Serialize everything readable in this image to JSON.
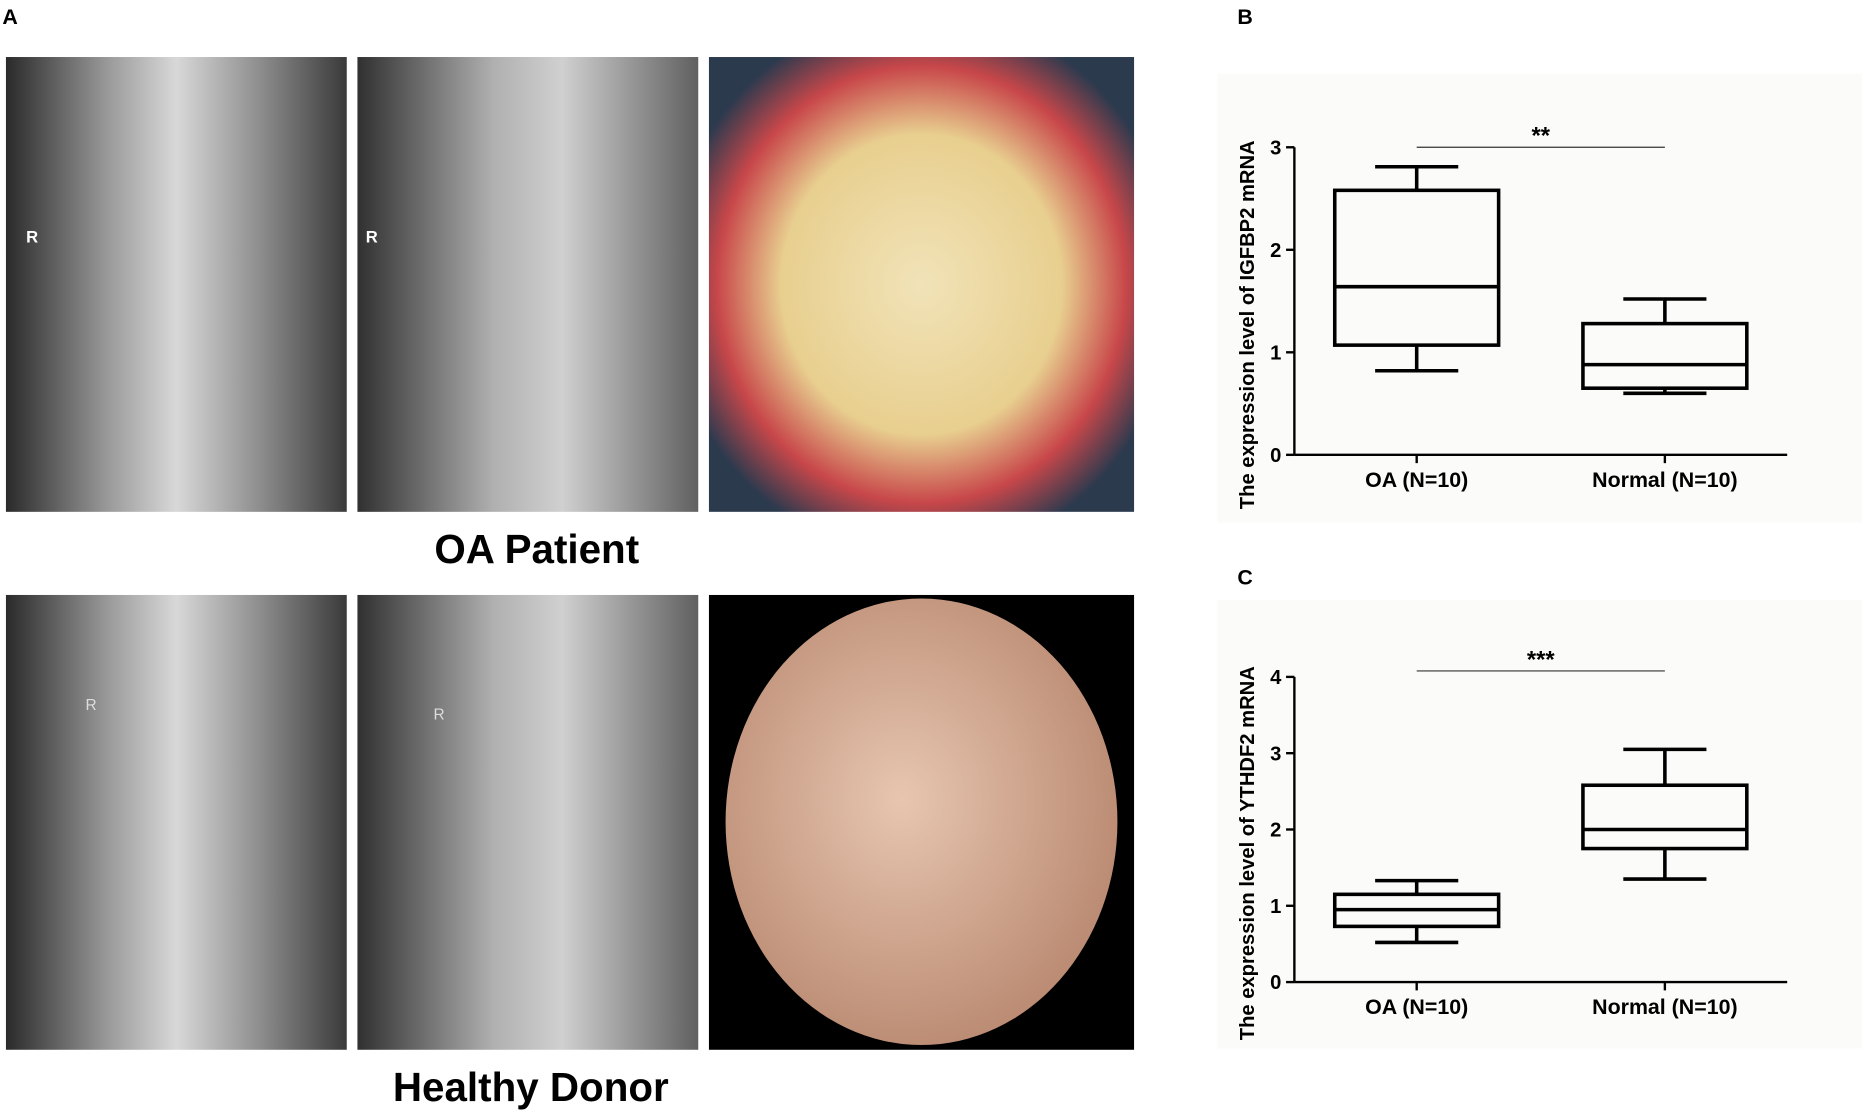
{
  "panel_labels": [
    "A",
    "B",
    "C"
  ],
  "captions": [
    "OA Patient",
    "Healthy Donor"
  ],
  "xray_markers": [
    "R",
    "R",
    "R",
    "R"
  ],
  "chart_data": [
    {
      "type": "box",
      "ylabel": "The expression level of IGFBP2 mRNA",
      "categories": [
        "OA (N=10)",
        "Normal (N=10)"
      ],
      "boxes": [
        {
          "min": 0.82,
          "q1": 1.07,
          "median": 1.64,
          "q3": 2.58,
          "max": 2.81
        },
        {
          "min": 0.6,
          "q1": 0.65,
          "median": 0.88,
          "q3": 1.28,
          "max": 1.52
        }
      ],
      "color": "#000000",
      "ylim": [
        0,
        3
      ],
      "yticks": [
        0,
        1,
        2,
        3
      ],
      "significance": "**"
    },
    {
      "type": "box",
      "ylabel": "The expression level of YTHDF2 mRNA",
      "categories": [
        "OA (N=10)",
        "Normal (N=10)"
      ],
      "boxes": [
        {
          "min": 0.52,
          "q1": 0.73,
          "median": 0.95,
          "q3": 1.15,
          "max": 1.33
        },
        {
          "min": 1.35,
          "q1": 1.75,
          "median": 2.0,
          "q3": 2.58,
          "max": 3.05
        }
      ],
      "color": "#000000",
      "ylim": [
        0,
        4
      ],
      "yticks": [
        0,
        1,
        2,
        3,
        4
      ],
      "significance": "***"
    }
  ]
}
